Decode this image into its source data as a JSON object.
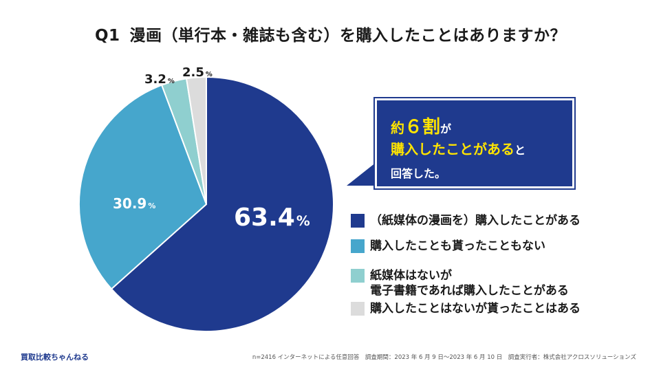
{
  "title": {
    "q_label": "Q1",
    "text": "漫画（単行本・雑誌も含む）を購入したことはありますか？"
  },
  "chart_data": {
    "type": "pie",
    "title": "漫画（単行本・雑誌も含む）を購入したことはありますか？",
    "labels": [
      "（紙媒体の漫画を）購入したことがある",
      "購入したことも貰ったこともない",
      "紙媒体はないが電子書籍であれば購入したことがある",
      "購入したことはないが貰ったことはある"
    ],
    "values": [
      63.4,
      30.9,
      3.2,
      2.5
    ],
    "value_labels": [
      "63.4",
      "30.9",
      "3.2",
      "2.5"
    ],
    "unit": "%",
    "colors": [
      "#1f3a8e",
      "#46a6cc",
      "#8fcfcf",
      "#dcdcdc"
    ],
    "start": "12 o'clock",
    "direction": "clockwise"
  },
  "callout": {
    "line1_a": "約",
    "line1_b": "６割",
    "line1_c": "が",
    "line2_a": "購入したことがある",
    "line2_b": "と",
    "line3": "回答した。"
  },
  "legend": {
    "items": [
      {
        "lines": [
          "（紙媒体の漫画を）購入したことがある"
        ]
      },
      {
        "lines": [
          "購入したことも貰ったこともない"
        ]
      },
      {
        "lines": [
          "紙媒体はないが",
          "電子書籍であれば購入したことがある"
        ]
      },
      {
        "lines": [
          "購入したことはないが貰ったことはある"
        ]
      }
    ]
  },
  "footer": {
    "brand": "買取比較ちゃんねる",
    "note": "n=2416 インターネットによる任意回答　調査期間：2023 年 6 月 9 日〜2023 年 6 月 10 日　調査実行者：株式会社アクロスソリューションズ"
  }
}
